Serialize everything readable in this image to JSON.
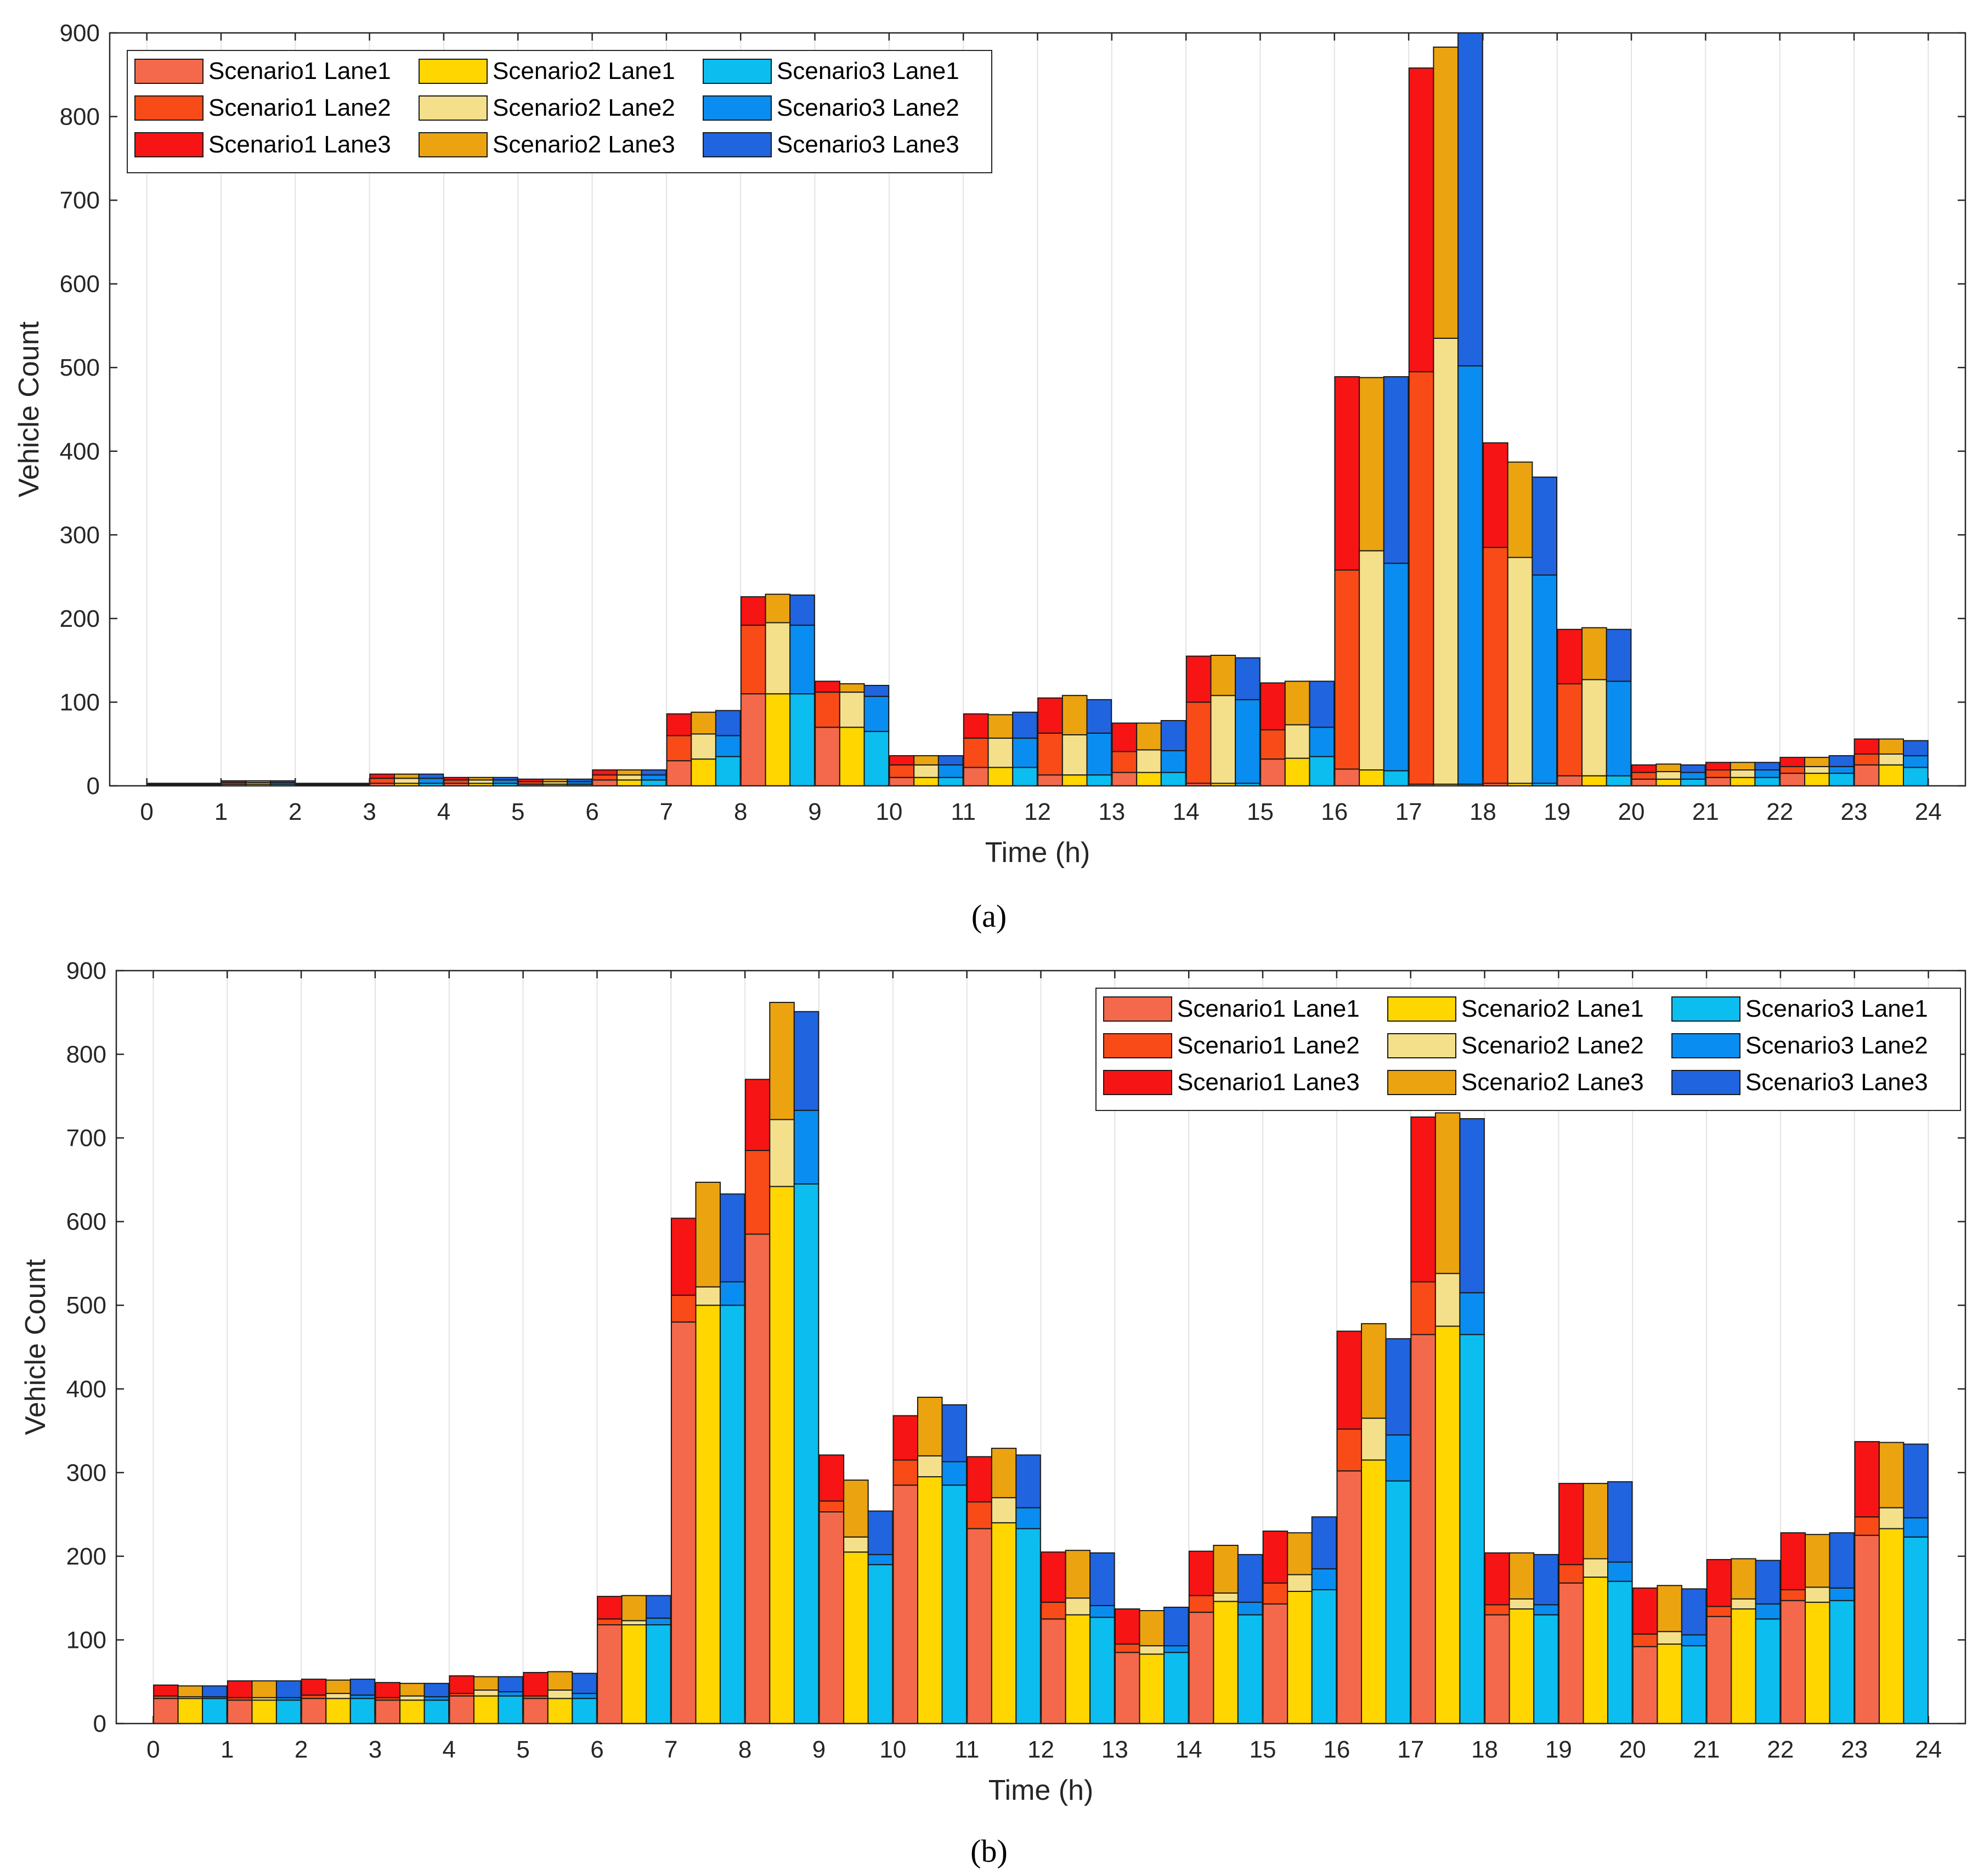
{
  "figure": {
    "domain": "Chart"
  },
  "legend_labels": [
    "Scenario1 Lane1",
    "Scenario2 Lane1",
    "Scenario3 Lane1",
    "Scenario1 Lane2",
    "Scenario2 Lane2",
    "Scenario3 Lane2",
    "Scenario1 Lane3",
    "Scenario2 Lane3",
    "Scenario3 Lane3"
  ],
  "colors": {
    "s1l1": "#F4694B",
    "s1l2": "#F94B17",
    "s1l3": "#F71414",
    "s2l1": "#FFD600",
    "s2l2": "#F4E08A",
    "s2l3": "#EBA410",
    "s3l1": "#0CBEEF",
    "s3l2": "#0A8DF0",
    "s3l3": "#2064E0"
  },
  "chart_data": [
    {
      "panel_label": "(a)",
      "type": "bar",
      "stacked": true,
      "grouped": true,
      "legend_position": "top-left",
      "xlabel": "Time (h)",
      "ylabel": "Vehicle Count",
      "ylim": [
        0,
        900
      ],
      "yticks": [
        "0",
        "100",
        "200",
        "300",
        "400",
        "500",
        "600",
        "700",
        "800",
        "900"
      ],
      "xticks": [
        "0",
        "1",
        "2",
        "3",
        "4",
        "5",
        "6",
        "7",
        "8",
        "9",
        "10",
        "11",
        "12",
        "13",
        "14",
        "15",
        "16",
        "17",
        "18",
        "19",
        "20",
        "21",
        "22",
        "23",
        "24"
      ],
      "hours": [
        0,
        1,
        2,
        3,
        4,
        5,
        6,
        7,
        8,
        9,
        10,
        11,
        12,
        13,
        14,
        15,
        16,
        17,
        18,
        19,
        20,
        21,
        22,
        23
      ],
      "scenarios": [
        {
          "name": "Scenario1",
          "lane1": [
            1,
            2,
            1,
            3,
            3,
            2,
            7,
            30,
            110,
            70,
            10,
            22,
            13,
            16,
            3,
            32,
            20,
            2,
            3,
            12,
            8,
            10,
            15,
            25
          ],
          "lane2": [
            1,
            2,
            1,
            6,
            4,
            3,
            6,
            30,
            82,
            42,
            15,
            35,
            50,
            25,
            97,
            35,
            238,
            493,
            282,
            110,
            8,
            9,
            8,
            13
          ],
          "lane3": [
            1,
            2,
            1,
            5,
            3,
            3,
            6,
            26,
            34,
            13,
            11,
            29,
            42,
            34,
            55,
            56,
            231,
            363,
            125,
            65,
            9,
            9,
            11,
            18
          ]
        },
        {
          "name": "Scenario2",
          "lane1": [
            1,
            2,
            1,
            3,
            3,
            2,
            7,
            32,
            110,
            70,
            10,
            22,
            13,
            16,
            3,
            33,
            19,
            2,
            3,
            12,
            8,
            10,
            15,
            25
          ],
          "lane2": [
            1,
            2,
            1,
            6,
            4,
            3,
            6,
            30,
            85,
            42,
            15,
            35,
            48,
            27,
            105,
            40,
            262,
            533,
            270,
            115,
            9,
            9,
            8,
            13
          ],
          "lane3": [
            1,
            2,
            1,
            5,
            3,
            3,
            6,
            26,
            34,
            10,
            11,
            28,
            47,
            32,
            48,
            52,
            207,
            348,
            114,
            62,
            9,
            9,
            11,
            18
          ]
        },
        {
          "name": "Scenario3",
          "lane1": [
            1,
            2,
            1,
            3,
            3,
            2,
            7,
            35,
            110,
            65,
            10,
            22,
            13,
            16,
            3,
            35,
            18,
            2,
            3,
            12,
            8,
            10,
            15,
            22
          ],
          "lane2": [
            1,
            2,
            1,
            6,
            4,
            3,
            6,
            25,
            82,
            42,
            15,
            35,
            50,
            26,
            100,
            35,
            248,
            500,
            249,
            113,
            8,
            9,
            8,
            14
          ],
          "lane3": [
            1,
            2,
            1,
            5,
            3,
            3,
            6,
            30,
            36,
            13,
            11,
            31,
            40,
            36,
            50,
            55,
            223,
            398,
            117,
            62,
            9,
            9,
            13,
            18
          ]
        }
      ]
    },
    {
      "panel_label": "(b)",
      "type": "bar",
      "stacked": true,
      "grouped": true,
      "legend_position": "top-right",
      "xlabel": "Time (h)",
      "ylabel": "Vehicle Count",
      "ylim": [
        0,
        900
      ],
      "yticks": [
        "0",
        "100",
        "200",
        "300",
        "400",
        "500",
        "600",
        "700",
        "800",
        "900"
      ],
      "xticks": [
        "0",
        "1",
        "2",
        "3",
        "4",
        "5",
        "6",
        "7",
        "8",
        "9",
        "10",
        "11",
        "12",
        "13",
        "14",
        "15",
        "16",
        "17",
        "18",
        "19",
        "20",
        "21",
        "22",
        "23",
        "24"
      ],
      "hours": [
        0,
        1,
        2,
        3,
        4,
        5,
        6,
        7,
        8,
        9,
        10,
        11,
        12,
        13,
        14,
        15,
        16,
        17,
        18,
        19,
        20,
        21,
        22,
        23
      ],
      "scenarios": [
        {
          "name": "Scenario1",
          "lane1": [
            30,
            28,
            30,
            28,
            33,
            30,
            118,
            480,
            585,
            253,
            285,
            233,
            125,
            85,
            133,
            143,
            302,
            465,
            130,
            168,
            92,
            128,
            147,
            225
          ],
          "lane2": [
            3,
            3,
            4,
            3,
            3,
            3,
            7,
            32,
            100,
            13,
            30,
            32,
            20,
            10,
            20,
            25,
            50,
            63,
            12,
            22,
            15,
            12,
            13,
            22
          ],
          "lane3": [
            13,
            20,
            19,
            18,
            21,
            28,
            27,
            92,
            85,
            55,
            53,
            54,
            60,
            42,
            53,
            62,
            117,
            197,
            62,
            97,
            55,
            56,
            68,
            90
          ]
        },
        {
          "name": "Scenario2",
          "lane1": [
            30,
            28,
            30,
            28,
            33,
            30,
            118,
            500,
            642,
            205,
            295,
            240,
            130,
            83,
            146,
            158,
            315,
            475,
            137,
            175,
            95,
            137,
            145,
            233
          ],
          "lane2": [
            2,
            3,
            6,
            5,
            7,
            10,
            5,
            22,
            80,
            18,
            25,
            30,
            20,
            10,
            10,
            20,
            50,
            63,
            12,
            22,
            15,
            12,
            18,
            25
          ],
          "lane3": [
            13,
            20,
            16,
            15,
            16,
            22,
            30,
            125,
            140,
            68,
            70,
            59,
            57,
            42,
            57,
            50,
            113,
            192,
            55,
            90,
            55,
            48,
            63,
            78
          ]
        },
        {
          "name": "Scenario3",
          "lane1": [
            30,
            28,
            30,
            28,
            33,
            30,
            118,
            500,
            645,
            190,
            285,
            233,
            127,
            85,
            130,
            160,
            290,
            465,
            130,
            170,
            93,
            125,
            147,
            223
          ],
          "lane2": [
            2,
            3,
            4,
            4,
            5,
            6,
            8,
            28,
            88,
            12,
            28,
            25,
            14,
            8,
            15,
            25,
            55,
            50,
            12,
            23,
            13,
            18,
            15,
            23
          ],
          "lane3": [
            13,
            20,
            19,
            16,
            18,
            24,
            27,
            105,
            118,
            52,
            68,
            63,
            63,
            46,
            57,
            62,
            115,
            208,
            60,
            96,
            55,
            52,
            66,
            88
          ]
        }
      ]
    }
  ]
}
